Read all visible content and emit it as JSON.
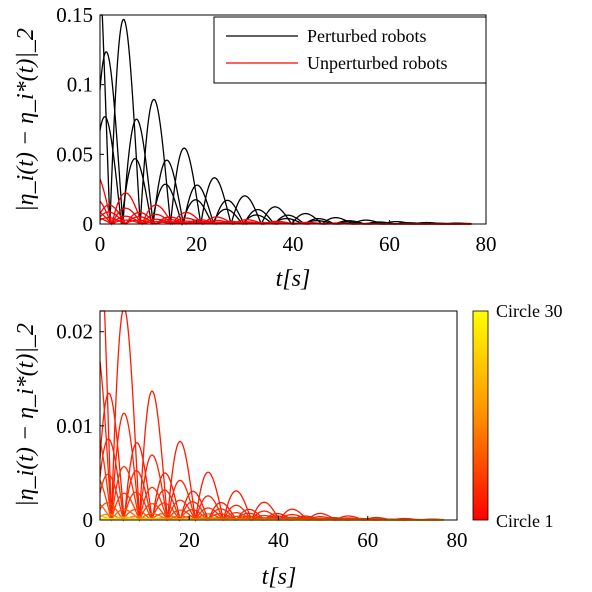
{
  "chart_data": [
    {
      "type": "line",
      "xlabel": "t[s]",
      "ylabel": "|η_i(t) − η_i*(t)|_2",
      "xlim": [
        0,
        80
      ],
      "ylim": [
        0,
        0.15
      ],
      "xticks": [
        "0",
        "20",
        "40",
        "60",
        "80"
      ],
      "yticks": [
        "0",
        "0.05",
        "0.1",
        "0.15"
      ],
      "legend_position": "top-right",
      "period_s": 6.28,
      "decay_per_s": 0.079,
      "t_end": 77,
      "series": [
        {
          "name": "Perturbed robots",
          "color": "#000000",
          "peak": 0.145,
          "phase": 5.2
        },
        {
          "name": "",
          "color": "#000000",
          "peak": 0.122,
          "phase": 1.6
        },
        {
          "name": "",
          "color": "#000000",
          "peak": 0.076,
          "phase": 1.3
        },
        {
          "name": "Unperturbed robots",
          "color": "#ff0000",
          "peak": 0.022,
          "phase": 5.6
        },
        {
          "name": "",
          "color": "#ff0000",
          "peak": 0.0135,
          "phase": 2.2
        },
        {
          "name": "",
          "color": "#ff0000",
          "peak": 0.0112,
          "phase": 5.6
        },
        {
          "name": "",
          "color": "#ff0000",
          "peak": 0.0085,
          "phase": 2.1
        },
        {
          "name": "",
          "color": "#ff0000",
          "peak": 0.0055,
          "phase": 5.6
        },
        {
          "name": "",
          "color": "#ff0000",
          "peak": 0.0045,
          "phase": 2.0
        },
        {
          "name": "",
          "color": "#ff0000",
          "peak": 0.0028,
          "phase": 5.6
        }
      ]
    },
    {
      "type": "line",
      "xlabel": "t[s]",
      "ylabel": "|η_i(t) − η_i*(t)|_2",
      "xlim": [
        0,
        80
      ],
      "ylim": [
        0,
        0.0222
      ],
      "xticks": [
        "0",
        "20",
        "40",
        "60",
        "80"
      ],
      "yticks": [
        "0",
        "0.01",
        "0.02"
      ],
      "period_s": 6.28,
      "decay_per_s": 0.079,
      "t_end": 77,
      "colorbar": {
        "top_label": "Circle 30",
        "bottom_label": "Circle 1",
        "colors": [
          "#ff0000",
          "#ffff00"
        ]
      },
      "series": [
        {
          "color": "#ff1a00",
          "peak": 0.0222,
          "phase": 5.7
        },
        {
          "color": "#ff1a00",
          "peak": 0.0133,
          "phase": 2.3
        },
        {
          "color": "#ff2200",
          "peak": 0.0112,
          "phase": 5.7
        },
        {
          "color": "#ff2200",
          "peak": 0.0085,
          "phase": 2.2
        },
        {
          "color": "#ff3000",
          "peak": 0.0056,
          "phase": 5.7
        },
        {
          "color": "#ff3000",
          "peak": 0.0048,
          "phase": 2.1
        },
        {
          "color": "#ff3c00",
          "peak": 0.0028,
          "phase": 5.7
        },
        {
          "color": "#ff4a00",
          "peak": 0.0018,
          "phase": 2.0
        },
        {
          "color": "#ff6000",
          "peak": 0.0011,
          "phase": 5.7
        },
        {
          "color": "#ff8000",
          "peak": 0.0006,
          "phase": 2.0
        },
        {
          "color": "#ffb000",
          "peak": 0.0003,
          "phase": 5.7
        },
        {
          "color": "#ffe000",
          "peak": 0.00015,
          "phase": 2.0
        },
        {
          "color": "#ffff00",
          "peak": 8e-05,
          "phase": 5.7
        }
      ]
    }
  ]
}
